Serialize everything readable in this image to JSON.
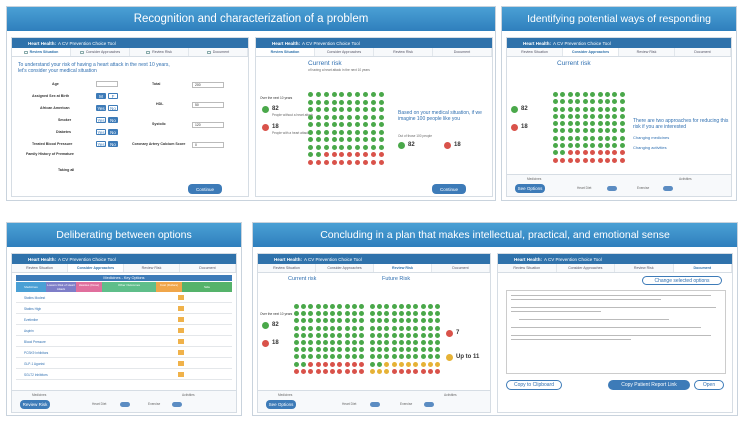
{
  "panels": {
    "p1": {
      "title": "Recognition and characterization of a problem"
    },
    "p2": {
      "title": "Identifying potential ways of responding"
    },
    "p3": {
      "title": "Deliberating between options"
    },
    "p4": {
      "title": "Concluding in a plan that makes intellectual, practical, and emotional sense"
    }
  },
  "app": {
    "title_bold": "Heart Health:",
    "title": "A CV Prevention Choice Tool"
  },
  "tabs": [
    "Review Situation",
    "Consider Approaches",
    "Review Risk",
    "Document"
  ],
  "p1": {
    "heading": "To understand your risk of having a heart attack in the next 10 years, let's consider your medical situation",
    "labels": [
      "Age",
      "Assigned Sex at Birth",
      "African American",
      "Smoker",
      "Diabetes",
      "Treated Blood Pressure",
      "Family History of Premature",
      "Taking all"
    ],
    "right_labels": [
      "Total",
      "HDL",
      "Systolic",
      "Coronary Artery Calcium Score"
    ],
    "right_values": [
      "200",
      "50",
      "120",
      "0"
    ],
    "toggle_labels": [
      "M",
      "F",
      "Yes",
      "No",
      "Yes",
      "No",
      "Yes",
      "No",
      "Yes",
      "No"
    ],
    "continue": "Continue"
  },
  "p1b": {
    "current_risk": "Current risk",
    "risk_sub": "of having a heart attack in the next 10 years",
    "over_label": "Over the next 10 years",
    "n82": "82",
    "n82_text": "People without a heart attack",
    "n18": "18",
    "n18_text": "People with a heart attack",
    "explain": "Based on your medical situation, if we imagine 100 people like you",
    "out_of": "Out of those 100 people",
    "n82b": "82",
    "n18b": "18",
    "continue": "Continue"
  },
  "p2": {
    "current_risk": "Current risk",
    "n82": "82",
    "n18": "18",
    "approach": "There are two approaches for reducing this risk if you are interested",
    "opt1": "Changing medicines",
    "opt2": "Changing activities",
    "footer_left": "Medicines",
    "footer_right": "Activities",
    "heart_diet": "Heart Diet",
    "exercise": "Exercise",
    "button": "See Options"
  },
  "p3": {
    "section": "Medicines - Key Options",
    "headers": [
      "Medicines",
      "Lowers Risk of Heart Attack",
      "Hassles (Dose)",
      "Other Outcomes",
      "Cost (Dollars)",
      "Side"
    ],
    "rows": [
      "Statins Modest",
      "Statins High",
      "Ezetimibe",
      "Aspirin",
      "Blood Pressure",
      "PCSK9 Inhibitors",
      "GLP-1 Agonist",
      "SGLT2 Inhibitors"
    ],
    "footer_left": "Medicines",
    "footer_right": "Activities",
    "heart_diet": "Heart Diet",
    "exercise": "Exercise",
    "button": "Review Risk"
  },
  "p4a": {
    "current_risk": "Current risk",
    "future_risk": "Future Risk",
    "over_label": "Over the next 10 years",
    "n82": "82",
    "n18": "18",
    "n7": "7",
    "upto": "Up to 11",
    "footer_left": "Medicines",
    "footer_right": "Activities",
    "heart_diet": "Heart Diet",
    "exercise": "Exercise",
    "button": "See Options"
  },
  "p4b": {
    "change": "Change selected options",
    "copy": "Copy to Clipboard",
    "report": "Copy Patient Report Link",
    "open": "Open"
  },
  "colors": {
    "green": "#4aa84a",
    "red": "#d9524a",
    "blue": "#2f72ab"
  }
}
